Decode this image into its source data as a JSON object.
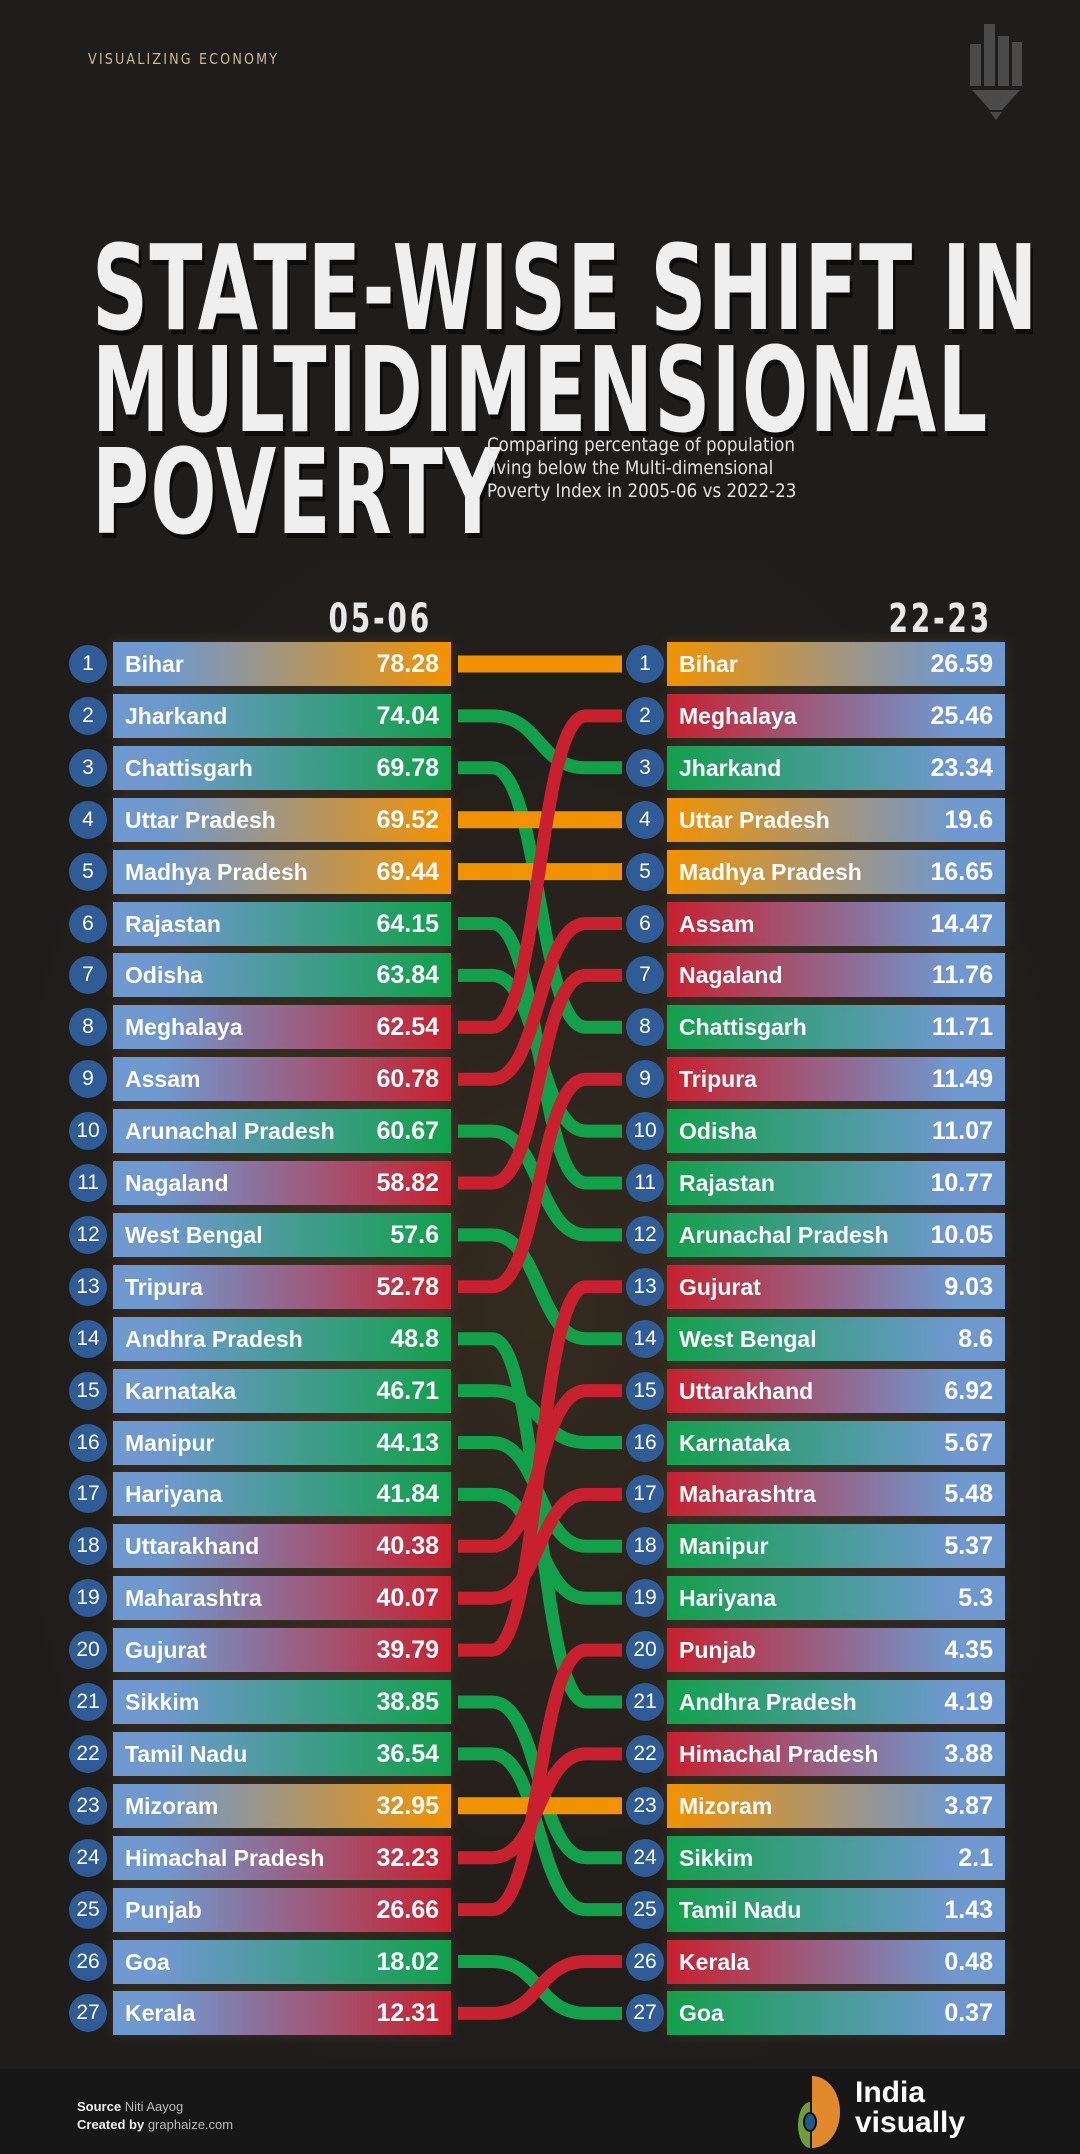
{
  "header": {
    "kicker": "VISUALIZING ECONOMY",
    "title_lines": [
      "STATE-WISE SHIFT IN",
      "MULTIDIMENSIONAL",
      "POVERTY"
    ],
    "subtitle": "Comparing percentage of population living below the  Multi-dimensional Poverty Index in 2005-06 vs 2022-23"
  },
  "chart_data": {
    "type": "bump",
    "columns": [
      "05-06",
      "22-23"
    ],
    "colors": {
      "same_rank": "#f39200",
      "rank_improved": "#12a04a",
      "rank_worsened": "#c8202e",
      "base": "#6f98cf",
      "rank_badge": "#2f5c96"
    },
    "rows": [
      {
        "state": "Bihar",
        "rank_0506": 1,
        "value_0506": "78.28",
        "rank_2223": 1,
        "value_2223": "26.59"
      },
      {
        "state": "Jharkand",
        "rank_0506": 2,
        "value_0506": "74.04",
        "rank_2223": 3,
        "value_2223": "23.34"
      },
      {
        "state": "Chattisgarh",
        "rank_0506": 3,
        "value_0506": "69.78",
        "rank_2223": 8,
        "value_2223": "11.71"
      },
      {
        "state": "Uttar Pradesh",
        "rank_0506": 4,
        "value_0506": "69.52",
        "rank_2223": 4,
        "value_2223": "19.6"
      },
      {
        "state": "Madhya Pradesh",
        "rank_0506": 5,
        "value_0506": "69.44",
        "rank_2223": 5,
        "value_2223": "16.65"
      },
      {
        "state": "Rajastan",
        "rank_0506": 6,
        "value_0506": "64.15",
        "rank_2223": 11,
        "value_2223": "10.77"
      },
      {
        "state": "Odisha",
        "rank_0506": 7,
        "value_0506": "63.84",
        "rank_2223": 10,
        "value_2223": "11.07"
      },
      {
        "state": "Meghalaya",
        "rank_0506": 8,
        "value_0506": "62.54",
        "rank_2223": 2,
        "value_2223": "25.46"
      },
      {
        "state": "Assam",
        "rank_0506": 9,
        "value_0506": "60.78",
        "rank_2223": 6,
        "value_2223": "14.47"
      },
      {
        "state": "Arunachal Pradesh",
        "rank_0506": 10,
        "value_0506": "60.67",
        "rank_2223": 12,
        "value_2223": "10.05"
      },
      {
        "state": "Nagaland",
        "rank_0506": 11,
        "value_0506": "58.82",
        "rank_2223": 7,
        "value_2223": "11.76"
      },
      {
        "state": "West Bengal",
        "rank_0506": 12,
        "value_0506": "57.6",
        "rank_2223": 14,
        "value_2223": "8.6"
      },
      {
        "state": "Tripura",
        "rank_0506": 13,
        "value_0506": "52.78",
        "rank_2223": 9,
        "value_2223": "11.49"
      },
      {
        "state": "Andhra Pradesh",
        "rank_0506": 14,
        "value_0506": "48.8",
        "rank_2223": 21,
        "value_2223": "4.19"
      },
      {
        "state": "Karnataka",
        "rank_0506": 15,
        "value_0506": "46.71",
        "rank_2223": 16,
        "value_2223": "5.67"
      },
      {
        "state": "Manipur",
        "rank_0506": 16,
        "value_0506": "44.13",
        "rank_2223": 18,
        "value_2223": "5.37"
      },
      {
        "state": "Hariyana",
        "rank_0506": 17,
        "value_0506": "41.84",
        "rank_2223": 19,
        "value_2223": "5.3"
      },
      {
        "state": "Uttarakhand",
        "rank_0506": 18,
        "value_0506": "40.38",
        "rank_2223": 15,
        "value_2223": "6.92"
      },
      {
        "state": "Maharashtra",
        "rank_0506": 19,
        "value_0506": "40.07",
        "rank_2223": 17,
        "value_2223": "5.48"
      },
      {
        "state": "Gujurat",
        "rank_0506": 20,
        "value_0506": "39.79",
        "rank_2223": 13,
        "value_2223": "9.03"
      },
      {
        "state": "Sikkim",
        "rank_0506": 21,
        "value_0506": "38.85",
        "rank_2223": 24,
        "value_2223": "2.1"
      },
      {
        "state": "Tamil Nadu",
        "rank_0506": 22,
        "value_0506": "36.54",
        "rank_2223": 25,
        "value_2223": "1.43"
      },
      {
        "state": "Mizoram",
        "rank_0506": 23,
        "value_0506": "32.95",
        "rank_2223": 23,
        "value_2223": "3.87"
      },
      {
        "state": "Himachal Pradesh",
        "rank_0506": 24,
        "value_0506": "32.23",
        "rank_2223": 22,
        "value_2223": "3.88"
      },
      {
        "state": "Punjab",
        "rank_0506": 25,
        "value_0506": "26.66",
        "rank_2223": 20,
        "value_2223": "4.35"
      },
      {
        "state": "Goa",
        "rank_0506": 26,
        "value_0506": "18.02",
        "rank_2223": 27,
        "value_2223": "0.37"
      },
      {
        "state": "Kerala",
        "rank_0506": 27,
        "value_0506": "12.31",
        "rank_2223": 26,
        "value_2223": "0.48"
      }
    ]
  },
  "footer": {
    "source_label": "Source",
    "source_value": "Niti Aayog",
    "created_label": "Created by",
    "created_value": "graphaize.com",
    "logo_text_1": "India",
    "logo_text_2": "visually"
  }
}
